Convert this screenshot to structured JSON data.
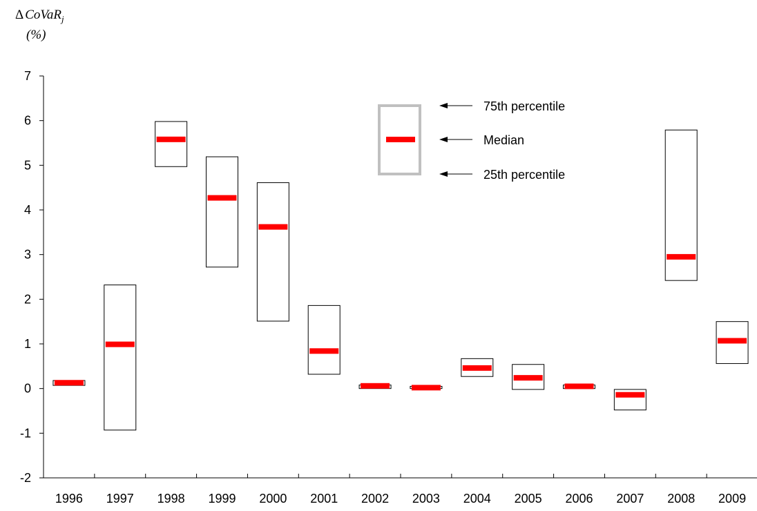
{
  "chart_data": {
    "type": "box",
    "ylabel": "ΔCoVaR_j",
    "ylabel_main": "CoVaR",
    "ylabel_sub": "j",
    "ylabel_delta": "Δ",
    "yunit": "(%)",
    "ylim": [
      -2,
      7
    ],
    "yticks": [
      "-2",
      "-1",
      "0",
      "1",
      "2",
      "3",
      "4",
      "5",
      "6",
      "7"
    ],
    "ytick_values": [
      -2,
      -1,
      0,
      1,
      2,
      3,
      4,
      5,
      6,
      7
    ],
    "categories": [
      "1996",
      "1997",
      "1998",
      "1999",
      "2000",
      "2001",
      "2002",
      "2003",
      "2004",
      "2005",
      "2006",
      "2007",
      "2008",
      "2009"
    ],
    "p25": [
      0.07,
      -0.93,
      4.97,
      2.72,
      1.51,
      0.32,
      0.0,
      0.0,
      0.27,
      -0.02,
      0.0,
      -0.48,
      2.42,
      0.56
    ],
    "median": [
      0.13,
      0.99,
      5.58,
      4.27,
      3.62,
      0.84,
      0.06,
      0.02,
      0.46,
      0.24,
      0.05,
      -0.14,
      2.95,
      1.07
    ],
    "p75": [
      0.18,
      2.32,
      5.98,
      5.19,
      4.61,
      1.86,
      0.08,
      0.05,
      0.67,
      0.54,
      0.08,
      -0.02,
      5.79,
      1.5
    ],
    "legend": {
      "p75_label": "75th percentile",
      "median_label": "Median",
      "p25_label": "25th percentile"
    },
    "colors": {
      "median": "#ff0000",
      "box": "#000000",
      "legend_box": "#c0c0c0"
    }
  }
}
